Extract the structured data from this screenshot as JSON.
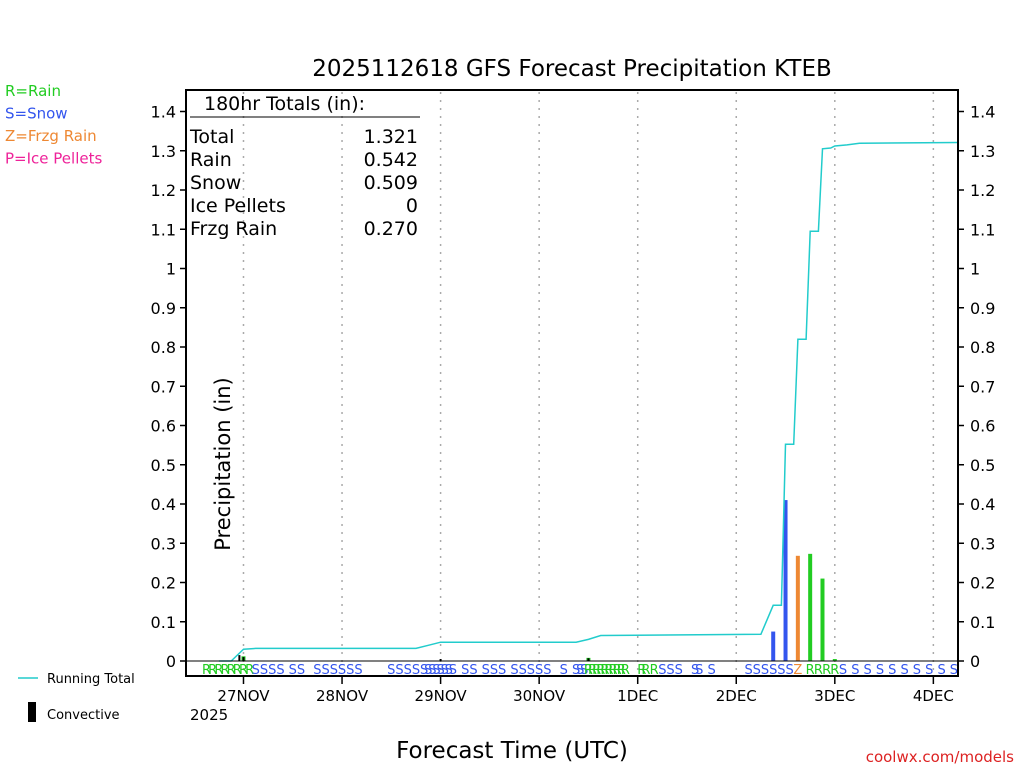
{
  "chart_data": {
    "type": "bar",
    "title": "2025112618 GFS Forecast Precipitation KTEB",
    "xlabel": "Forecast Time (UTC)",
    "ylabel": "Precipitation (in)",
    "ylim": [
      0,
      1.45
    ],
    "xlim_hours": [
      -8,
      180
    ],
    "yticks": [
      "0",
      "0.1",
      "0.2",
      "0.3",
      "0.4",
      "0.5",
      "0.6",
      "0.7",
      "0.8",
      "0.9",
      "1",
      "1.1",
      "1.2",
      "1.3",
      "1.4"
    ],
    "ytick_values": [
      0,
      0.1,
      0.2,
      0.3,
      0.4,
      0.5,
      0.6,
      0.7,
      0.8,
      0.9,
      1,
      1.1,
      1.2,
      1.3,
      1.4
    ],
    "xticks": [
      {
        "label": "27NOV",
        "hour": 6
      },
      {
        "label": "28NOV",
        "hour": 30
      },
      {
        "label": "29NOV",
        "hour": 54
      },
      {
        "label": "30NOV",
        "hour": 78
      },
      {
        "label": "1DEC",
        "hour": 102
      },
      {
        "label": "2DEC",
        "hour": 126
      },
      {
        "label": "3DEC",
        "hour": 150
      },
      {
        "label": "4DEC",
        "hour": 174
      }
    ],
    "year_label": "2025",
    "legend_types": [
      {
        "label": "R=Rain",
        "color": "#22cc22"
      },
      {
        "label": "S=Snow",
        "color": "#3355ee"
      },
      {
        "label": "Z=Frzg Rain",
        "color": "#ee8833"
      },
      {
        "label": "P=Ice Pellets",
        "color": "#ee2299"
      }
    ],
    "legend_lines": [
      {
        "label": "Running Total",
        "color": "#22cccc"
      },
      {
        "label": "Convective",
        "color": "#000000"
      }
    ],
    "totals": {
      "header": "180hr Totals (in):",
      "rows": [
        {
          "name": "Total",
          "value": "1.321"
        },
        {
          "name": "Rain",
          "value": "0.542"
        },
        {
          "name": "Snow",
          "value": "0.509"
        },
        {
          "name": "Ice Pellets",
          "value": "0"
        },
        {
          "name": "Frzg Rain",
          "value": "0.270"
        }
      ]
    },
    "bars": [
      {
        "hour": 6,
        "value": 0.012,
        "ptype": "R"
      },
      {
        "hour": 90,
        "value": 0.008,
        "ptype": "R"
      },
      {
        "hour": 135,
        "value": 0.075,
        "ptype": "S"
      },
      {
        "hour": 138,
        "value": 0.41,
        "ptype": "S"
      },
      {
        "hour": 141,
        "value": 0.268,
        "ptype": "Z"
      },
      {
        "hour": 144,
        "value": 0.273,
        "ptype": "R"
      },
      {
        "hour": 147,
        "value": 0.21,
        "ptype": "R"
      },
      {
        "hour": 150,
        "value": 0.005,
        "ptype": "R"
      }
    ],
    "convective": [
      {
        "hour": 5,
        "value": 0.015
      },
      {
        "hour": 6,
        "value": 0.01
      },
      {
        "hour": 54,
        "value": 0.004
      },
      {
        "hour": 90,
        "value": 0.007
      }
    ],
    "running_total": [
      [
        0,
        0
      ],
      [
        3,
        0
      ],
      [
        6,
        0.03
      ],
      [
        9,
        0.032
      ],
      [
        48,
        0.032
      ],
      [
        51,
        0.04
      ],
      [
        54,
        0.048
      ],
      [
        87,
        0.048
      ],
      [
        90,
        0.055
      ],
      [
        93,
        0.065
      ],
      [
        132,
        0.068
      ],
      [
        135,
        0.142
      ],
      [
        137,
        0.142
      ],
      [
        138,
        0.552
      ],
      [
        140,
        0.552
      ],
      [
        141,
        0.82
      ],
      [
        143,
        0.82
      ],
      [
        144,
        1.095
      ],
      [
        146,
        1.095
      ],
      [
        147,
        1.305
      ],
      [
        149,
        1.307
      ],
      [
        150,
        1.312
      ],
      [
        153,
        1.315
      ],
      [
        156,
        1.319
      ],
      [
        180,
        1.321
      ]
    ],
    "ptype_strip": [
      {
        "hour": -3,
        "code": "R"
      },
      {
        "hour": -1.5,
        "code": "R"
      },
      {
        "hour": 0,
        "code": "R"
      },
      {
        "hour": 1.5,
        "code": "R"
      },
      {
        "hour": 3,
        "code": "R"
      },
      {
        "hour": 4.5,
        "code": "R"
      },
      {
        "hour": 6,
        "code": "R"
      },
      {
        "hour": 7.5,
        "code": "R"
      },
      {
        "hour": 9,
        "code": "S"
      },
      {
        "hour": 11,
        "code": "S"
      },
      {
        "hour": 13,
        "code": "S"
      },
      {
        "hour": 15,
        "code": "S"
      },
      {
        "hour": 18,
        "code": "S"
      },
      {
        "hour": 20,
        "code": "S"
      },
      {
        "hour": 24,
        "code": "S"
      },
      {
        "hour": 26,
        "code": "S"
      },
      {
        "hour": 28,
        "code": "S"
      },
      {
        "hour": 30,
        "code": "S"
      },
      {
        "hour": 32,
        "code": "S"
      },
      {
        "hour": 34,
        "code": "S"
      },
      {
        "hour": 42,
        "code": "S"
      },
      {
        "hour": 44,
        "code": "S"
      },
      {
        "hour": 46,
        "code": "S"
      },
      {
        "hour": 48,
        "code": "S"
      },
      {
        "hour": 50,
        "code": "S"
      },
      {
        "hour": 51,
        "code": "S"
      },
      {
        "hour": 52,
        "code": "S"
      },
      {
        "hour": 53,
        "code": "S"
      },
      {
        "hour": 54,
        "code": "S"
      },
      {
        "hour": 55,
        "code": "S"
      },
      {
        "hour": 56,
        "code": "S"
      },
      {
        "hour": 57,
        "code": "S"
      },
      {
        "hour": 60,
        "code": "S"
      },
      {
        "hour": 62,
        "code": "S"
      },
      {
        "hour": 65,
        "code": "S"
      },
      {
        "hour": 67,
        "code": "S"
      },
      {
        "hour": 69,
        "code": "S"
      },
      {
        "hour": 72,
        "code": "S"
      },
      {
        "hour": 74,
        "code": "S"
      },
      {
        "hour": 76,
        "code": "S"
      },
      {
        "hour": 78,
        "code": "S"
      },
      {
        "hour": 80,
        "code": "S"
      },
      {
        "hour": 84,
        "code": "S"
      },
      {
        "hour": 87,
        "code": "S"
      },
      {
        "hour": 88,
        "code": "S"
      },
      {
        "hour": 89,
        "code": "S"
      },
      {
        "hour": 90,
        "code": "R"
      },
      {
        "hour": 91,
        "code": "R"
      },
      {
        "hour": 92,
        "code": "R"
      },
      {
        "hour": 93,
        "code": "R"
      },
      {
        "hour": 94,
        "code": "R"
      },
      {
        "hour": 95,
        "code": "R"
      },
      {
        "hour": 96,
        "code": "R"
      },
      {
        "hour": 97,
        "code": "R"
      },
      {
        "hour": 98,
        "code": "R"
      },
      {
        "hour": 99,
        "code": "R"
      },
      {
        "hour": 103,
        "code": "R"
      },
      {
        "hour": 104,
        "code": "R"
      },
      {
        "hour": 106,
        "code": "R"
      },
      {
        "hour": 108,
        "code": "S"
      },
      {
        "hour": 110,
        "code": "S"
      },
      {
        "hour": 112,
        "code": "S"
      },
      {
        "hour": 116,
        "code": "S"
      },
      {
        "hour": 117,
        "code": "S"
      },
      {
        "hour": 120,
        "code": "S"
      },
      {
        "hour": 129,
        "code": "S"
      },
      {
        "hour": 131,
        "code": "S"
      },
      {
        "hour": 133,
        "code": "S"
      },
      {
        "hour": 135,
        "code": "S"
      },
      {
        "hour": 137,
        "code": "S"
      },
      {
        "hour": 139,
        "code": "S"
      },
      {
        "hour": 141,
        "code": "Z"
      },
      {
        "hour": 144,
        "code": "R"
      },
      {
        "hour": 146,
        "code": "R"
      },
      {
        "hour": 148,
        "code": "R"
      },
      {
        "hour": 150,
        "code": "R"
      },
      {
        "hour": 152,
        "code": "S"
      },
      {
        "hour": 155,
        "code": "S"
      },
      {
        "hour": 158,
        "code": "S"
      },
      {
        "hour": 161,
        "code": "S"
      },
      {
        "hour": 164,
        "code": "S"
      },
      {
        "hour": 167,
        "code": "S"
      },
      {
        "hour": 170,
        "code": "S"
      },
      {
        "hour": 173,
        "code": "S"
      },
      {
        "hour": 176,
        "code": "S"
      },
      {
        "hour": 179,
        "code": "S"
      }
    ]
  },
  "colors": {
    "R": "#22cc22",
    "S": "#3355ee",
    "Z": "#ee8833",
    "P": "#ee2299",
    "running": "#22cccc",
    "convective": "#000000",
    "grid": "#aaaaaa",
    "credit": "#dd2222"
  },
  "credit": "coolwx.com/models"
}
